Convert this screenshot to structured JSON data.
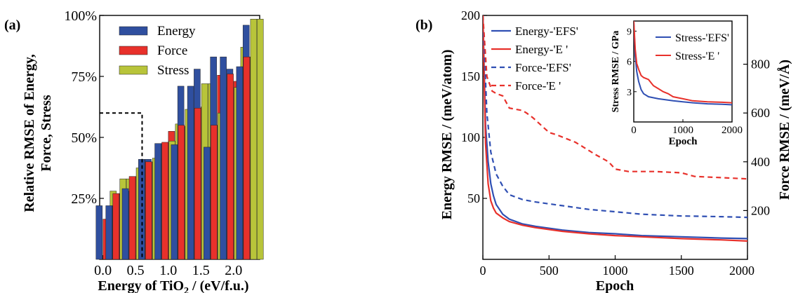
{
  "chart_data": [
    {
      "type": "bar",
      "panel_label": "(a)",
      "xlabel": "Energy of TiO",
      "xlabel_sub": "2",
      "xlabel_tail": " / (eV/f.u.)",
      "ylabel_line1": "Relative RMSE of Energy,",
      "ylabel_line2": "Force, Stress",
      "ylim": [
        0,
        100
      ],
      "xlim": [
        -0.05,
        2.4
      ],
      "x_ticks": [
        0.0,
        0.5,
        1.0,
        1.5,
        2.0
      ],
      "x_tick_labels": [
        "0.0",
        "0.5",
        "1.0",
        "1.5",
        "2.0"
      ],
      "y_ticks": [
        25,
        50,
        75,
        100
      ],
      "y_tick_labels": [
        "25%",
        "50%",
        "75%",
        "100%"
      ],
      "x": [
        0.05,
        0.3,
        0.55,
        0.8,
        1.05,
        1.3,
        1.55,
        1.8,
        2.05,
        2.3
      ],
      "secondary_x": [
        0.2,
        0.45,
        0.7,
        0.95,
        1.2,
        1.45,
        1.7,
        1.95,
        2.2
      ],
      "series": [
        {
          "name": "Energy",
          "color": "#2f4f9f",
          "values": [
            22,
            22,
            28,
            41,
            47.5,
            71,
            78,
            83,
            78,
            96
          ]
        },
        {
          "name": "Force",
          "color": "#e8312b",
          "values": [
            16.5,
            27,
            34,
            40,
            52.5,
            54.5,
            62.5,
            75.5,
            73,
            83
          ]
        },
        {
          "name": "Stress",
          "color": "#b8c43a",
          "values": [
            28,
            33,
            37.5,
            41.5,
            55.5,
            61.5,
            72,
            70.5,
            87,
            98.5
          ]
        }
      ],
      "secondary_values": {
        "Energy": [
          22,
          29,
          41,
          47.5,
          47,
          71,
          46,
          83,
          79
        ],
        "Force": [
          27,
          34,
          40,
          48,
          55,
          62,
          55,
          76,
          83
        ],
        "Stress": [
          33,
          37.5,
          41.5,
          48.5,
          61.5,
          72,
          60,
          70.5,
          98.5
        ]
      },
      "dashed_box": {
        "x_max": 0.6,
        "y_max": 60
      },
      "legend_position": "top-left"
    },
    {
      "type": "line",
      "panel_label": "(b)",
      "xlabel": "Epoch",
      "ylabel": "Energy RMSE / (meV/atom)",
      "ylabel_right": "Force RMSE / (meV/Å)",
      "xlim": [
        0,
        2000
      ],
      "ylim": [
        0,
        200
      ],
      "ylim_right": [
        0,
        1000
      ],
      "x_ticks": [
        0,
        500,
        1000,
        1500,
        2000
      ],
      "x_tick_labels": [
        "0",
        "500",
        "1000",
        "1500",
        "2000"
      ],
      "y_ticks": [
        50,
        100,
        150,
        200
      ],
      "y_tick_labels": [
        "50",
        "100",
        "150",
        "200"
      ],
      "y_ticks_right": [
        200,
        400,
        600,
        800
      ],
      "y_tick_labels_right": [
        "200",
        "400",
        "600",
        "800"
      ],
      "series": [
        {
          "name": "Energy-'EFS'",
          "color": "#2f4fb3",
          "style": "solid",
          "axis": "left",
          "x": [
            0,
            20,
            40,
            60,
            80,
            100,
            150,
            200,
            300,
            400,
            600,
            800,
            1000,
            1200,
            1500,
            1800,
            2000
          ],
          "values": [
            200,
            110,
            80,
            62,
            52,
            45,
            37,
            33,
            29,
            27,
            24,
            22,
            21,
            19.5,
            18.5,
            17.5,
            17
          ]
        },
        {
          "name": "Energy-'E  '",
          "color": "#e8312b",
          "style": "solid",
          "axis": "left",
          "x": [
            0,
            20,
            40,
            60,
            80,
            100,
            150,
            200,
            300,
            400,
            600,
            800,
            1000,
            1200,
            1500,
            1800,
            2000
          ],
          "values": [
            200,
            95,
            62,
            48,
            42,
            38,
            34,
            31,
            28,
            26,
            23,
            21,
            19.5,
            18.5,
            17,
            16,
            15
          ]
        },
        {
          "name": "Force-'EFS'",
          "color": "#2f4fb3",
          "style": "dashed",
          "axis": "right",
          "x": [
            0,
            30,
            60,
            100,
            150,
            200,
            300,
            400,
            600,
            800,
            1000,
            1200,
            1500,
            1800,
            2000
          ],
          "values": [
            1000,
            600,
            440,
            350,
            300,
            265,
            245,
            235,
            220,
            205,
            195,
            185,
            178,
            175,
            172
          ]
        },
        {
          "name": "Force-'E  '",
          "color": "#e8312b",
          "style": "dashed",
          "axis": "right",
          "x": [
            0,
            30,
            50,
            70,
            100,
            150,
            200,
            300,
            330,
            380,
            500,
            560,
            700,
            760,
            850,
            950,
            1000,
            1100,
            1300,
            1500,
            1600,
            1800,
            2000
          ],
          "values": [
            1000,
            750,
            720,
            690,
            680,
            670,
            620,
            610,
            600,
            580,
            520,
            510,
            480,
            460,
            430,
            400,
            370,
            360,
            360,
            355,
            340,
            335,
            330
          ]
        }
      ],
      "legend_position": "top-left",
      "inset": {
        "type": "line",
        "xlabel": "Epoch",
        "ylabel": "Stress RMSE / GPa",
        "xlim": [
          0,
          2000
        ],
        "ylim": [
          0,
          10
        ],
        "x_ticks": [
          0,
          1000,
          2000
        ],
        "x_tick_labels": [
          "0",
          "1000",
          "2000"
        ],
        "y_ticks": [
          3,
          6,
          9
        ],
        "y_tick_labels": [
          "3",
          "6",
          "9"
        ],
        "series": [
          {
            "name": "Stress-'EFS'",
            "color": "#2f4fb3",
            "x": [
              0,
              30,
              60,
              100,
              150,
              200,
              300,
              500,
              800,
              1000,
              1200,
              1500,
              1800,
              2000
            ],
            "values": [
              10,
              6.5,
              5.0,
              4.0,
              3.2,
              2.8,
              2.5,
              2.3,
              2.1,
              2.0,
              1.9,
              1.8,
              1.75,
              1.7
            ]
          },
          {
            "name": "Stress-'E  '",
            "color": "#e8312b",
            "x": [
              0,
              30,
              60,
              100,
              150,
              200,
              300,
              400,
              500,
              600,
              700,
              800,
              1000,
              1200,
              1500,
              1800,
              2000
            ],
            "values": [
              10,
              7.2,
              5.8,
              5.2,
              4.6,
              4.4,
              4.2,
              3.6,
              3.3,
              3.0,
              2.8,
              2.5,
              2.3,
              2.1,
              2.0,
              1.95,
              1.9
            ]
          }
        ],
        "legend_position": "top-right"
      }
    }
  ]
}
